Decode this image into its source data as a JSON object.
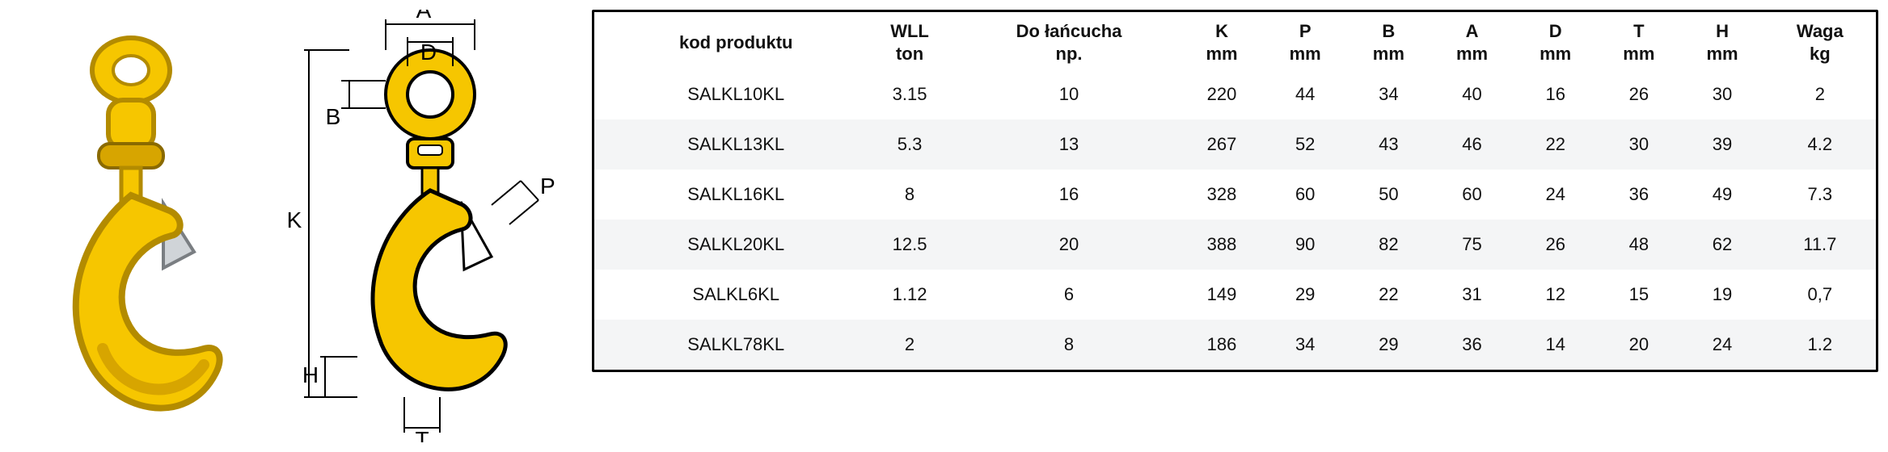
{
  "diagram": {
    "labels": {
      "A": "A",
      "D": "D",
      "B": "B",
      "K": "K",
      "H": "H",
      "T": "T",
      "P": "P"
    },
    "colors": {
      "hook": "#f6c600",
      "hook_shade": "#d7a500",
      "outline": "#000000"
    }
  },
  "table": {
    "columns": [
      {
        "line1": "kod produktu",
        "line2": ""
      },
      {
        "line1": "WLL",
        "line2": "ton"
      },
      {
        "line1": "Do łańcucha",
        "line2": "np."
      },
      {
        "line1": "K",
        "line2": "mm"
      },
      {
        "line1": "P",
        "line2": "mm"
      },
      {
        "line1": "B",
        "line2": "mm"
      },
      {
        "line1": "A",
        "line2": "mm"
      },
      {
        "line1": "D",
        "line2": "mm"
      },
      {
        "line1": "T",
        "line2": "mm"
      },
      {
        "line1": "H",
        "line2": "mm"
      },
      {
        "line1": "Waga",
        "line2": "kg"
      }
    ],
    "rows": [
      [
        "SALKL10KL",
        "3.15",
        "10",
        "220",
        "44",
        "34",
        "40",
        "16",
        "26",
        "30",
        "2"
      ],
      [
        "SALKL13KL",
        "5.3",
        "13",
        "267",
        "52",
        "43",
        "46",
        "22",
        "30",
        "39",
        "4.2"
      ],
      [
        "SALKL16KL",
        "8",
        "16",
        "328",
        "60",
        "50",
        "60",
        "24",
        "36",
        "49",
        "7.3"
      ],
      [
        "SALKL20KL",
        "12.5",
        "20",
        "388",
        "90",
        "82",
        "75",
        "26",
        "48",
        "62",
        "11.7"
      ],
      [
        "SALKL6KL",
        "1.12",
        "6",
        "149",
        "29",
        "22",
        "31",
        "12",
        "15",
        "19",
        "0,7"
      ],
      [
        "SALKL78KL",
        "2",
        "8",
        "186",
        "34",
        "29",
        "36",
        "14",
        "20",
        "24",
        "1.2"
      ]
    ],
    "style": {
      "border_color": "#000000",
      "row_alt_bg": "#f4f5f6",
      "row_bg": "#ffffff",
      "text_color": "#111111",
      "font_size": 22,
      "header_weight": "700"
    }
  }
}
